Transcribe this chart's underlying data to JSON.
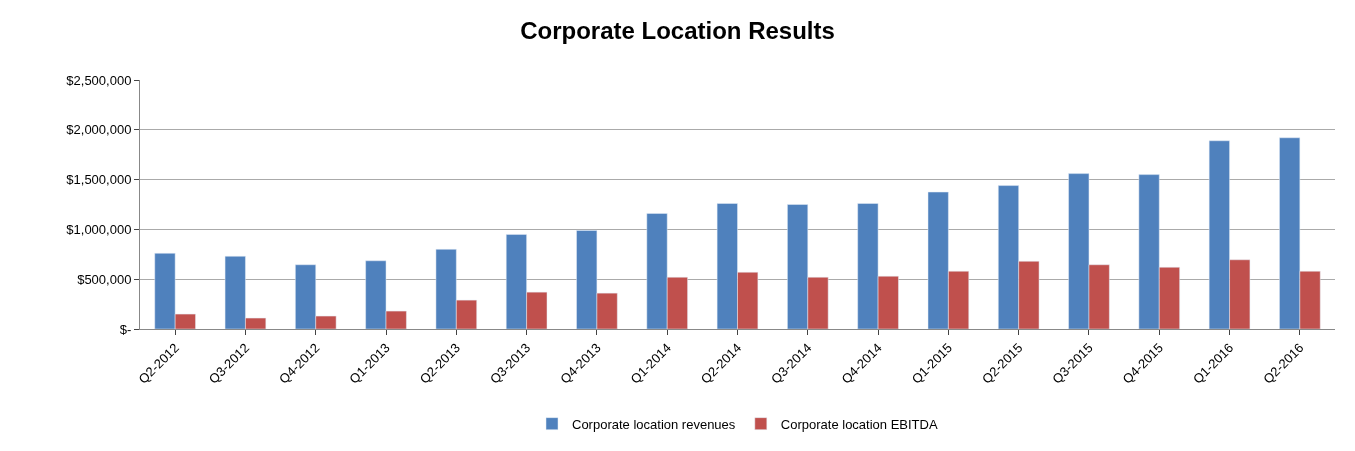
{
  "chart_data": {
    "type": "bar",
    "title": "Corporate Location Results",
    "categories": [
      "Q2-2012",
      "Q3-2012",
      "Q4-2012",
      "Q1-2013",
      "Q2-2013",
      "Q3-2013",
      "Q4-2013",
      "Q1-2014",
      "Q2-2014",
      "Q3-2014",
      "Q4-2014",
      "Q1-2015",
      "Q2-2015",
      "Q3-2015",
      "Q4-2015",
      "Q1-2016",
      "Q2-2016"
    ],
    "series": [
      {
        "name": "Corporate location revenues",
        "color": "#4f81bd",
        "values": [
          760000,
          730000,
          645000,
          685000,
          800000,
          950000,
          990000,
          1160000,
          1260000,
          1250000,
          1260000,
          1375000,
          1440000,
          1560000,
          1550000,
          1890000,
          1920000
        ]
      },
      {
        "name": "Corporate location EBITDA",
        "color": "#c0504d",
        "values": [
          150000,
          110000,
          130000,
          180000,
          290000,
          370000,
          360000,
          520000,
          570000,
          520000,
          530000,
          580000,
          680000,
          645000,
          620000,
          695000,
          580000
        ]
      }
    ],
    "ylim": [
      0,
      2500000
    ],
    "yticks": [
      {
        "value": 0,
        "label": "$-"
      },
      {
        "value": 500000,
        "label": "$500,000"
      },
      {
        "value": 1000000,
        "label": "$1,000,000"
      },
      {
        "value": 1500000,
        "label": "$1,500,000"
      },
      {
        "value": 2000000,
        "label": "$2,000,000"
      },
      {
        "value": 2500000,
        "label": "$2,500,000"
      }
    ],
    "grid": "y",
    "legend": "bottom"
  }
}
